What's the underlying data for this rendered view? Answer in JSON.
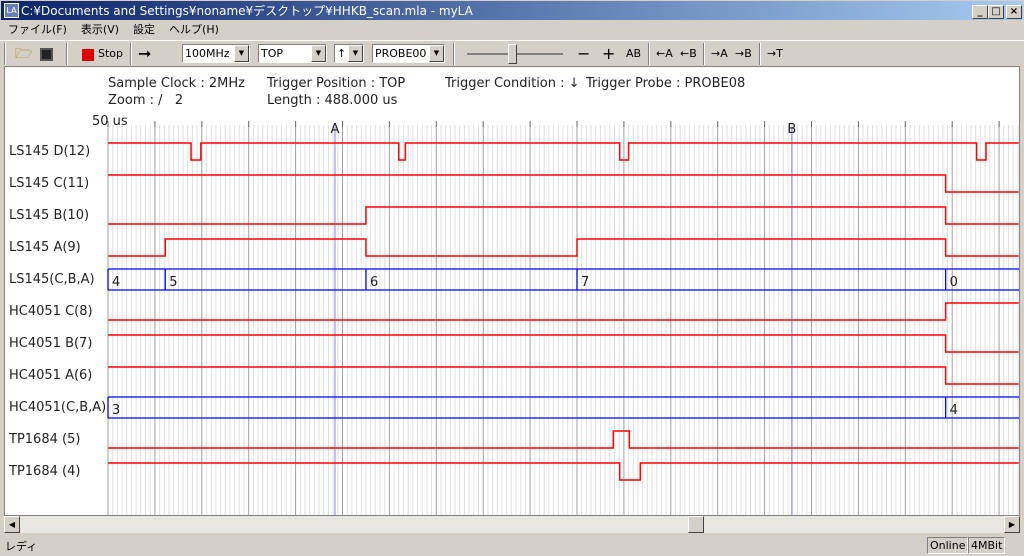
{
  "window": {
    "title": "C:¥Documents and Settings¥noname¥デスクトップ¥HHKB_scan.mla - myLA",
    "minimize": "_",
    "maximize": "□",
    "close": "×"
  },
  "menu": [
    "ファイル(F)",
    "表示(V)",
    "設定",
    "ヘルプ(H)"
  ],
  "toolbar": {
    "stop_label": "Stop",
    "run_arrow": "➞",
    "clock": "100MHz",
    "position": "TOP",
    "edge": "↑",
    "probe": "PROBE00",
    "minus": "−",
    "plus": "+",
    "ab": "AB",
    "prev_a": "←A",
    "prev_b": "←B",
    "next_a": "→A",
    "next_b": "→B",
    "to_t": "→T",
    "zoom_slider_fraction": 0.45
  },
  "info": {
    "sample_clock": "Sample Clock : 2MHz",
    "zoom": "Zoom : /   2",
    "trigger_position": "Trigger Position : TOP",
    "length": "Length : 488.000 us",
    "trigger_condition": "Trigger Condition : ↓",
    "trigger_probe": "Trigger Probe : PROBE08"
  },
  "timescale": {
    "label": "50 us",
    "division_us": 50,
    "view_start_us": 0,
    "view_end_us": 971
  },
  "cursors": [
    {
      "name": "A",
      "t_us": 242
    },
    {
      "name": "B",
      "t_us": 729
    }
  ],
  "colors": {
    "signal": "#ff0000",
    "bus": "#0000ff",
    "cursor": "#8080ff",
    "grid_major": "#a0a0a0",
    "grid_minor": "#e0e0e0"
  },
  "channels": [
    {
      "label": "LS145 D(12)",
      "type": "bit",
      "initial": 1,
      "transitions": [
        88.5,
        99,
        310,
        317,
        545.5,
        555,
        926,
        936
      ]
    },
    {
      "label": "LS145 C(11)",
      "type": "bit",
      "initial": 1,
      "transitions": [
        893
      ]
    },
    {
      "label": "LS145 B(10)",
      "type": "bit",
      "initial": 0,
      "transitions": [
        275,
        893
      ]
    },
    {
      "label": "LS145 A(9)",
      "type": "bit",
      "initial": 0,
      "transitions": [
        61,
        275,
        500,
        893
      ]
    },
    {
      "label": "LS145(C,B,A)",
      "type": "bus",
      "segments": [
        {
          "t": 0,
          "v": "4"
        },
        {
          "t": 61,
          "v": "5"
        },
        {
          "t": 275,
          "v": "6"
        },
        {
          "t": 500,
          "v": "7"
        },
        {
          "t": 893,
          "v": "0"
        }
      ]
    },
    {
      "label": "HC4051 C(8)",
      "type": "bit",
      "initial": 0,
      "transitions": [
        893
      ]
    },
    {
      "label": "HC4051 B(7)",
      "type": "bit",
      "initial": 1,
      "transitions": [
        893
      ]
    },
    {
      "label": "HC4051 A(6)",
      "type": "bit",
      "initial": 1,
      "transitions": [
        893
      ]
    },
    {
      "label": "HC4051(C,B,A)",
      "type": "bus",
      "segments": [
        {
          "t": 0,
          "v": "3"
        },
        {
          "t": 893,
          "v": "4"
        }
      ]
    },
    {
      "label": "TP1684 (5)",
      "type": "bit",
      "initial": 0,
      "transitions": [
        538.7,
        555.8
      ]
    },
    {
      "label": "TP1684 (4)",
      "type": "bit",
      "initial": 1,
      "transitions": [
        545.5,
        567.5
      ]
    }
  ],
  "scroll": {
    "position_fraction": 0.69
  },
  "status": {
    "text": "レディ",
    "online": "Online",
    "memory": "4MBit"
  }
}
